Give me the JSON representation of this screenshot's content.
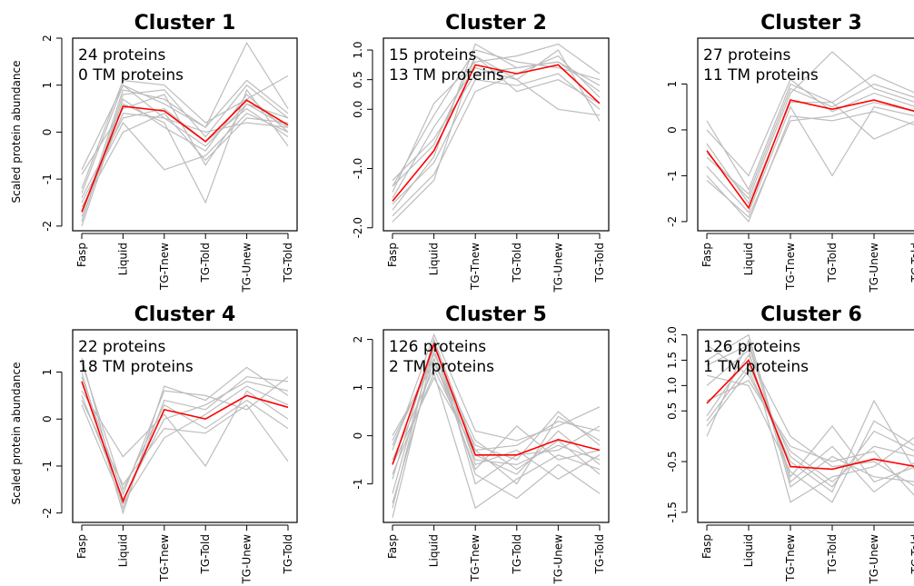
{
  "ylabel": "Scaled protein abundance",
  "chart_data": [
    {
      "type": "line",
      "title": "Cluster 1",
      "annotations": [
        "24 proteins",
        "0 TM proteins"
      ],
      "categories": [
        "Fasp",
        "Liquid",
        "TG-Tnew",
        "TG-Told",
        "TG-Unew",
        "TG-Told"
      ],
      "ylim": [
        -2.1,
        2.0
      ],
      "yticks": [
        -2,
        -1,
        0,
        1,
        2
      ],
      "ytick_labels": [
        "-2",
        "-1",
        "0",
        "1",
        "2"
      ],
      "mean_color": "#ff0000",
      "profile_color": "#bdbdbd",
      "mean": [
        -1.7,
        0.55,
        0.45,
        -0.2,
        0.68,
        0.15
      ],
      "profiles": [
        [
          -1.7,
          0.4,
          0.3,
          -0.3,
          0.6,
          0.1
        ],
        [
          -1.9,
          0.8,
          0.9,
          -0.1,
          1.0,
          0.3
        ],
        [
          -1.5,
          0.2,
          -0.8,
          -0.5,
          0.4,
          0.0
        ],
        [
          -0.8,
          1.0,
          0.6,
          0.1,
          1.9,
          0.5
        ],
        [
          -2.0,
          0.6,
          0.2,
          -1.5,
          0.9,
          -0.3
        ],
        [
          -1.2,
          1.1,
          1.0,
          0.2,
          0.7,
          1.2
        ],
        [
          -1.6,
          0.0,
          0.4,
          -0.6,
          0.3,
          0.2
        ],
        [
          -1.8,
          0.9,
          0.7,
          0.1,
          1.1,
          0.4
        ],
        [
          -1.4,
          0.3,
          0.5,
          -0.2,
          0.5,
          -0.1
        ],
        [
          -1.9,
          0.7,
          0.1,
          -0.4,
          0.8,
          0.0
        ],
        [
          -0.9,
          0.5,
          0.8,
          -0.7,
          0.6,
          0.3
        ],
        [
          -1.3,
          1.0,
          0.3,
          0.0,
          0.2,
          0.1
        ]
      ]
    },
    {
      "type": "line",
      "title": "Cluster 2",
      "annotations": [
        "15 proteins",
        "13 TM proteins"
      ],
      "categories": [
        "Fasp",
        "Liquid",
        "TG-Tnew",
        "TG-Told",
        "TG-Unew",
        "TG-Told"
      ],
      "ylim": [
        -2.05,
        1.2
      ],
      "yticks": [
        -2.0,
        -1.0,
        0.0,
        0.5,
        1.0
      ],
      "ytick_labels": [
        "-2.0",
        "-1.0",
        "0.0",
        "0.5",
        "1.0"
      ],
      "mean_color": "#ff0000",
      "profile_color": "#bdbdbd",
      "mean": [
        -1.55,
        -0.7,
        0.75,
        0.6,
        0.75,
        0.1
      ],
      "profiles": [
        [
          -1.2,
          -0.5,
          0.6,
          0.7,
          0.8,
          0.3
        ],
        [
          -1.9,
          -1.2,
          0.9,
          0.5,
          1.0,
          -0.2
        ],
        [
          -1.3,
          -0.1,
          1.0,
          0.8,
          0.7,
          0.5
        ],
        [
          -1.6,
          -0.9,
          0.5,
          0.4,
          0.6,
          0.0
        ],
        [
          -1.4,
          0.1,
          0.8,
          0.9,
          1.1,
          0.6
        ],
        [
          -1.8,
          -1.1,
          0.3,
          0.6,
          0.9,
          0.2
        ],
        [
          -1.5,
          -0.3,
          0.7,
          0.5,
          0.0,
          -0.1
        ],
        [
          -1.7,
          -0.8,
          1.1,
          0.7,
          0.8,
          0.4
        ],
        [
          -1.3,
          -0.6,
          0.9,
          0.3,
          0.5,
          0.1
        ]
      ]
    },
    {
      "type": "line",
      "title": "Cluster 3",
      "annotations": [
        "27 proteins",
        "11 TM proteins"
      ],
      "categories": [
        "Fasp",
        "Liquid",
        "TG-Tnew",
        "TG-Told",
        "TG-Unew",
        "TG-Told"
      ],
      "ylim": [
        -2.2,
        2.0
      ],
      "yticks": [
        -2,
        -1,
        0,
        1
      ],
      "ytick_labels": [
        "-2",
        "-1",
        "0",
        "1"
      ],
      "mean_color": "#ff0000",
      "profile_color": "#bdbdbd",
      "mean": [
        -0.45,
        -1.7,
        0.65,
        0.45,
        0.65,
        0.4
      ],
      "profiles": [
        [
          0.2,
          -1.3,
          1.0,
          0.6,
          1.2,
          0.8
        ],
        [
          -1.0,
          -2.0,
          0.3,
          0.2,
          0.4,
          0.1
        ],
        [
          -0.5,
          -1.5,
          0.8,
          1.7,
          0.9,
          0.6
        ],
        [
          -0.8,
          -1.8,
          0.5,
          -1.0,
          0.5,
          0.3
        ],
        [
          0.0,
          -1.0,
          1.1,
          0.4,
          0.8,
          0.5
        ],
        [
          -0.3,
          -1.6,
          0.6,
          0.6,
          -0.2,
          0.2
        ],
        [
          -1.1,
          -1.9,
          0.2,
          0.3,
          0.6,
          0.4
        ],
        [
          -0.6,
          -1.4,
          0.9,
          0.5,
          1.0,
          0.7
        ]
      ]
    },
    {
      "type": "line",
      "title": "Cluster 4",
      "annotations": [
        "22 proteins",
        "18 TM proteins"
      ],
      "categories": [
        "Fasp",
        "Liquid",
        "TG-Tnew",
        "TG-Told",
        "TG-Unew",
        "TG-Told"
      ],
      "ylim": [
        -2.2,
        1.9
      ],
      "yticks": [
        -2,
        -1,
        0,
        1
      ],
      "ytick_labels": [
        "-2",
        "-1",
        "0",
        "1"
      ],
      "mean_color": "#ff0000",
      "profile_color": "#bdbdbd",
      "mean": [
        0.8,
        -1.75,
        0.2,
        0.0,
        0.5,
        0.25
      ],
      "profiles": [
        [
          1.3,
          -1.9,
          0.4,
          0.2,
          0.9,
          0.8
        ],
        [
          0.4,
          -1.4,
          -0.2,
          -0.3,
          0.3,
          -0.9
        ],
        [
          1.0,
          -2.0,
          0.7,
          0.4,
          1.1,
          0.5
        ],
        [
          0.6,
          -0.8,
          0.1,
          -1.0,
          0.6,
          0.0
        ],
        [
          0.9,
          -1.6,
          0.6,
          0.5,
          0.2,
          0.9
        ],
        [
          0.3,
          -1.8,
          -0.4,
          0.1,
          0.7,
          0.3
        ],
        [
          1.2,
          -1.5,
          0.3,
          -0.2,
          0.4,
          -0.2
        ],
        [
          0.5,
          -1.7,
          0.0,
          0.3,
          0.8,
          0.6
        ]
      ]
    },
    {
      "type": "line",
      "title": "Cluster 5",
      "annotations": [
        "126 proteins",
        "2 TM proteins"
      ],
      "categories": [
        "Fasp",
        "Liquid",
        "TG-Tnew",
        "TG-Told",
        "TG-Unew",
        "TG-Told"
      ],
      "ylim": [
        -1.8,
        2.2
      ],
      "yticks": [
        -1,
        0,
        1,
        2
      ],
      "ytick_labels": [
        "-1",
        "0",
        "1",
        "2"
      ],
      "mean_color": "#ff0000",
      "profile_color": "#bdbdbd",
      "mean": [
        -0.6,
        1.9,
        -0.4,
        -0.4,
        -0.08,
        -0.3
      ],
      "profiles": [
        [
          -0.1,
          1.6,
          -0.5,
          -0.6,
          -0.2,
          -0.5
        ],
        [
          -1.5,
          2.0,
          -0.3,
          -0.2,
          0.3,
          0.1
        ],
        [
          -0.8,
          1.3,
          -1.5,
          -0.9,
          -0.4,
          -0.7
        ],
        [
          -0.3,
          2.1,
          0.1,
          -0.1,
          0.2,
          0.6
        ],
        [
          -1.7,
          1.8,
          -0.8,
          -1.3,
          -0.6,
          -1.2
        ],
        [
          0.0,
          1.5,
          -0.2,
          -0.5,
          0.5,
          -0.2
        ],
        [
          -1.2,
          1.9,
          -0.6,
          -0.3,
          -0.9,
          -0.4
        ],
        [
          -0.5,
          1.4,
          -0.4,
          -0.8,
          0.1,
          -0.6
        ],
        [
          -0.9,
          2.0,
          -1.0,
          -0.4,
          -0.3,
          0.2
        ],
        [
          -0.2,
          1.7,
          -0.1,
          -0.7,
          -0.1,
          -0.8
        ],
        [
          -1.4,
          1.6,
          -0.7,
          0.2,
          -0.5,
          -0.3
        ],
        [
          -0.6,
          1.2,
          -0.3,
          -1.0,
          0.4,
          -0.1
        ]
      ]
    },
    {
      "type": "line",
      "title": "Cluster 6",
      "annotations": [
        "126 proteins",
        "1 TM proteins"
      ],
      "categories": [
        "Fasp",
        "Liquid",
        "TG-Tnew",
        "TG-Told",
        "TG-Unew",
        "TG-Told"
      ],
      "ylim": [
        -1.7,
        2.1
      ],
      "yticks": [
        -1.5,
        -0.5,
        0.5,
        1.0,
        1.5,
        2.0
      ],
      "ytick_labels": [
        "-1.5",
        "-0.5",
        "0.5",
        "1.0",
        "1.5",
        "2.0"
      ],
      "mean_color": "#ff0000",
      "profile_color": "#bdbdbd",
      "mean": [
        0.65,
        1.5,
        -0.6,
        -0.65,
        -0.45,
        -0.6
      ],
      "profiles": [
        [
          1.8,
          1.2,
          -0.3,
          -0.9,
          -0.2,
          -0.4
        ],
        [
          0.0,
          1.9,
          -1.0,
          -0.4,
          -0.8,
          -0.9
        ],
        [
          1.2,
          1.0,
          -0.7,
          -1.3,
          0.3,
          -0.2
        ],
        [
          0.4,
          1.6,
          0.0,
          -0.6,
          -0.5,
          -1.0
        ],
        [
          1.5,
          2.0,
          -0.9,
          -0.2,
          -1.1,
          -0.5
        ],
        [
          0.2,
          1.3,
          -0.5,
          -1.1,
          0.7,
          -0.7
        ],
        [
          1.0,
          1.7,
          -1.3,
          -0.8,
          -0.6,
          0.0
        ],
        [
          0.7,
          1.1,
          -0.2,
          -0.5,
          -0.3,
          -1.2
        ],
        [
          1.4,
          1.8,
          -0.8,
          0.2,
          -0.9,
          -0.6
        ],
        [
          0.3,
          1.4,
          -0.4,
          -1.0,
          0.1,
          -0.3
        ]
      ]
    }
  ]
}
